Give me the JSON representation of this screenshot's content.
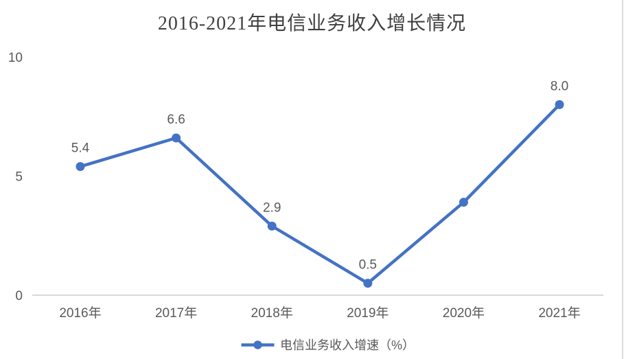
{
  "title": "2016-2021年电信业务收入增长情况",
  "legend": {
    "label": "电信业务收入增速（%）"
  },
  "colors": {
    "line": "#4472C4",
    "axis_line": "#d9d9d9",
    "label_text": "#595959",
    "title_text": "#404040"
  },
  "chart_data": {
    "type": "line",
    "title": "2016-2021年电信业务收入增长情况",
    "categories": [
      "2016年",
      "2017年",
      "2018年",
      "2019年",
      "2020年",
      "2021年"
    ],
    "series": [
      {
        "name": "电信业务收入增速（%）",
        "values": [
          5.4,
          6.6,
          2.9,
          0.5,
          3.9,
          8.0
        ],
        "color": "#4472C4"
      }
    ],
    "point_labels": [
      "5.4",
      "6.6",
      "2.9",
      "0.5",
      "",
      "8.0"
    ],
    "xlabel": "",
    "ylabel": "",
    "ylim": [
      0,
      10
    ],
    "yticks": [
      0,
      5,
      10
    ],
    "grid": false,
    "legend_position": "bottom"
  }
}
